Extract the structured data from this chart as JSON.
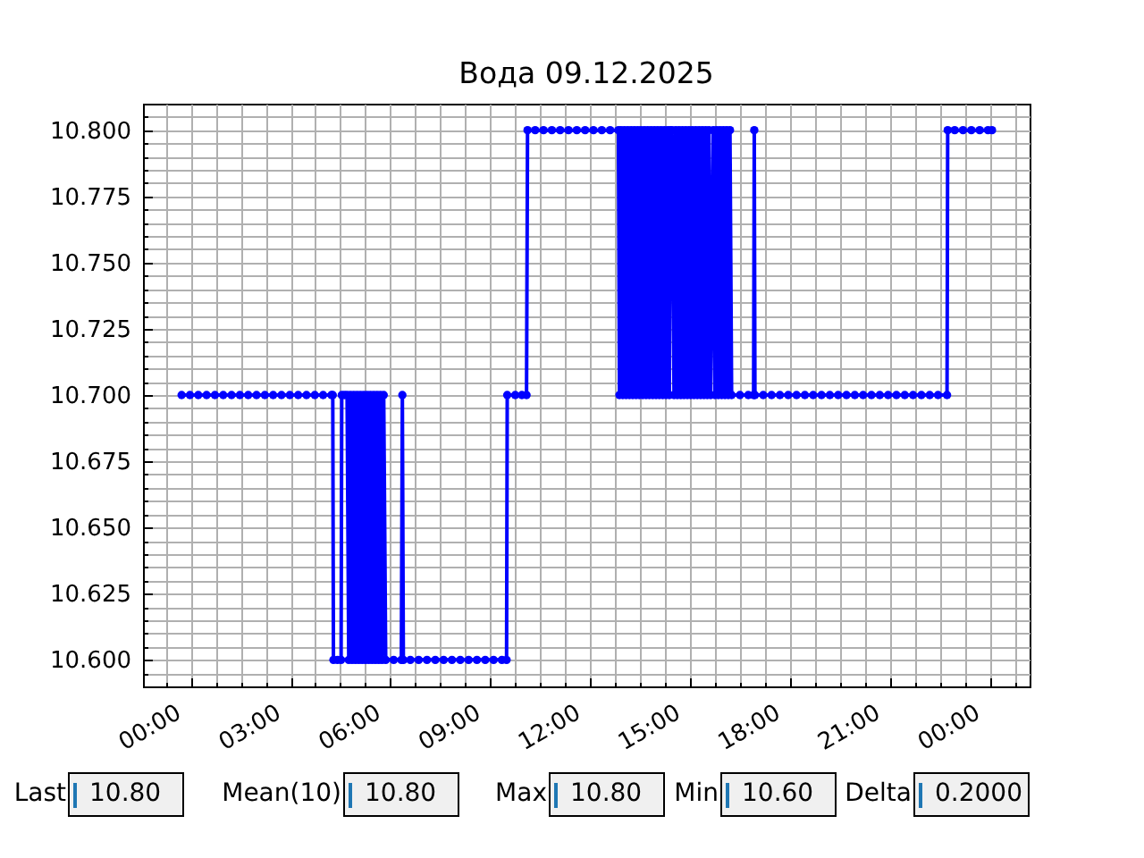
{
  "chart_data": {
    "type": "line",
    "title": "Вода 09.12.2025",
    "color": "#0000ff",
    "marker": "circle",
    "grid": true,
    "xlim": [
      -1.43,
      25.2
    ],
    "ylim": [
      10.59,
      10.81
    ],
    "xticks": [
      {
        "value": -0.75,
        "label": null
      },
      {
        "value": 0,
        "label": "00:00"
      },
      {
        "value": 0.75,
        "label": null
      },
      {
        "value": 1.5,
        "label": null
      },
      {
        "value": 2.25,
        "label": null
      },
      {
        "value": 3,
        "label": "03:00"
      },
      {
        "value": 3.75,
        "label": null
      },
      {
        "value": 4.5,
        "label": null
      },
      {
        "value": 5.25,
        "label": null
      },
      {
        "value": 6,
        "label": "06:00"
      },
      {
        "value": 6.75,
        "label": null
      },
      {
        "value": 7.5,
        "label": null
      },
      {
        "value": 8.25,
        "label": null
      },
      {
        "value": 9,
        "label": "09:00"
      },
      {
        "value": 9.75,
        "label": null
      },
      {
        "value": 10.5,
        "label": null
      },
      {
        "value": 11.25,
        "label": null
      },
      {
        "value": 12,
        "label": "12:00"
      },
      {
        "value": 12.75,
        "label": null
      },
      {
        "value": 13.5,
        "label": null
      },
      {
        "value": 14.25,
        "label": null
      },
      {
        "value": 15,
        "label": "15:00"
      },
      {
        "value": 15.75,
        "label": null
      },
      {
        "value": 16.5,
        "label": null
      },
      {
        "value": 17.25,
        "label": null
      },
      {
        "value": 18,
        "label": "18:00"
      },
      {
        "value": 18.75,
        "label": null
      },
      {
        "value": 19.5,
        "label": null
      },
      {
        "value": 20.25,
        "label": null
      },
      {
        "value": 21,
        "label": "21:00"
      },
      {
        "value": 21.75,
        "label": null
      },
      {
        "value": 22.5,
        "label": null
      },
      {
        "value": 23.25,
        "label": null
      },
      {
        "value": 24,
        "label": "00:00"
      },
      {
        "value": 24.75,
        "label": null
      }
    ],
    "yticks": [
      {
        "value": 10.595,
        "label": null
      },
      {
        "value": 10.6,
        "label": "10.600"
      },
      {
        "value": 10.605,
        "label": null
      },
      {
        "value": 10.61,
        "label": null
      },
      {
        "value": 10.615,
        "label": null
      },
      {
        "value": 10.62,
        "label": null
      },
      {
        "value": 10.625,
        "label": "10.625"
      },
      {
        "value": 10.63,
        "label": null
      },
      {
        "value": 10.635,
        "label": null
      },
      {
        "value": 10.64,
        "label": null
      },
      {
        "value": 10.645,
        "label": null
      },
      {
        "value": 10.65,
        "label": "10.650"
      },
      {
        "value": 10.655,
        "label": null
      },
      {
        "value": 10.66,
        "label": null
      },
      {
        "value": 10.665,
        "label": null
      },
      {
        "value": 10.67,
        "label": null
      },
      {
        "value": 10.675,
        "label": "10.675"
      },
      {
        "value": 10.68,
        "label": null
      },
      {
        "value": 10.685,
        "label": null
      },
      {
        "value": 10.69,
        "label": null
      },
      {
        "value": 10.695,
        "label": null
      },
      {
        "value": 10.7,
        "label": "10.700"
      },
      {
        "value": 10.705,
        "label": null
      },
      {
        "value": 10.71,
        "label": null
      },
      {
        "value": 10.715,
        "label": null
      },
      {
        "value": 10.72,
        "label": null
      },
      {
        "value": 10.725,
        "label": "10.725"
      },
      {
        "value": 10.73,
        "label": null
      },
      {
        "value": 10.735,
        "label": null
      },
      {
        "value": 10.74,
        "label": null
      },
      {
        "value": 10.745,
        "label": null
      },
      {
        "value": 10.75,
        "label": "10.750"
      },
      {
        "value": 10.755,
        "label": null
      },
      {
        "value": 10.76,
        "label": null
      },
      {
        "value": 10.765,
        "label": null
      },
      {
        "value": 10.77,
        "label": null
      },
      {
        "value": 10.775,
        "label": "10.775"
      },
      {
        "value": 10.78,
        "label": null
      },
      {
        "value": 10.785,
        "label": null
      },
      {
        "value": 10.79,
        "label": null
      },
      {
        "value": 10.795,
        "label": null
      },
      {
        "value": 10.8,
        "label": "10.800"
      },
      {
        "value": 10.805,
        "label": null
      }
    ],
    "x": [
      -0.27,
      -0.02,
      0.23,
      0.48,
      0.73,
      0.98,
      1.23,
      1.48,
      1.73,
      1.98,
      2.23,
      2.48,
      2.73,
      2.98,
      3.23,
      3.48,
      3.73,
      3.98,
      4.23,
      4.27,
      4.29,
      4.41,
      4.52,
      4.54,
      4.62,
      4.7,
      4.75,
      4.8,
      4.85,
      4.9,
      4.95,
      5.0,
      5.05,
      5.1,
      5.15,
      5.2,
      5.25,
      5.3,
      5.35,
      5.4,
      5.45,
      5.5,
      5.55,
      5.6,
      5.65,
      5.7,
      5.75,
      5.8,
      5.86,
      6.1,
      6.33,
      6.36,
      6.39,
      6.6,
      6.85,
      7.1,
      7.35,
      7.6,
      7.85,
      8.1,
      8.35,
      8.6,
      8.85,
      9.1,
      9.35,
      9.49,
      9.51,
      9.75,
      9.95,
      10.09,
      10.12,
      10.35,
      10.6,
      10.85,
      11.1,
      11.35,
      11.6,
      11.85,
      12.1,
      12.35,
      12.6,
      12.85,
      12.88,
      12.93,
      12.98,
      13.03,
      13.08,
      13.13,
      13.18,
      13.23,
      13.28,
      13.33,
      13.38,
      13.43,
      13.48,
      13.53,
      13.58,
      13.63,
      13.68,
      13.73,
      13.78,
      13.83,
      13.88,
      13.93,
      13.98,
      14.03,
      14.08,
      14.13,
      14.18,
      14.23,
      14.28,
      14.33,
      14.38,
      14.41,
      14.46,
      14.52,
      14.57,
      14.62,
      14.67,
      14.72,
      14.77,
      14.82,
      14.87,
      14.92,
      14.97,
      15.02,
      15.07,
      15.12,
      15.17,
      15.22,
      15.27,
      15.32,
      15.37,
      15.42,
      15.47,
      15.52,
      15.57,
      15.62,
      15.7,
      15.75,
      15.8,
      15.85,
      15.9,
      15.95,
      16.0,
      16.05,
      16.1,
      16.15,
      16.2,
      16.25,
      16.5,
      16.75,
      16.91,
      16.93,
      16.95,
      17.2,
      17.45,
      17.7,
      17.95,
      18.2,
      18.45,
      18.7,
      18.95,
      19.2,
      19.45,
      19.7,
      19.95,
      20.2,
      20.45,
      20.7,
      20.95,
      21.2,
      21.45,
      21.7,
      21.95,
      22.2,
      22.45,
      22.72,
      22.74,
      22.95,
      23.2,
      23.45,
      23.7,
      23.95,
      24.07
    ],
    "values": [
      10.7,
      10.7,
      10.7,
      10.7,
      10.7,
      10.7,
      10.7,
      10.7,
      10.7,
      10.7,
      10.7,
      10.7,
      10.7,
      10.7,
      10.7,
      10.7,
      10.7,
      10.7,
      10.7,
      10.7,
      10.6,
      10.6,
      10.6,
      10.7,
      10.7,
      10.7,
      10.6,
      10.7,
      10.6,
      10.7,
      10.6,
      10.7,
      10.6,
      10.7,
      10.6,
      10.7,
      10.6,
      10.7,
      10.6,
      10.7,
      10.6,
      10.7,
      10.6,
      10.7,
      10.6,
      10.7,
      10.6,
      10.7,
      10.6,
      10.6,
      10.6,
      10.7,
      10.6,
      10.6,
      10.6,
      10.6,
      10.6,
      10.6,
      10.6,
      10.6,
      10.6,
      10.6,
      10.6,
      10.6,
      10.6,
      10.6,
      10.7,
      10.7,
      10.7,
      10.7,
      10.8,
      10.8,
      10.8,
      10.8,
      10.8,
      10.8,
      10.8,
      10.8,
      10.8,
      10.8,
      10.8,
      10.8,
      10.7,
      10.8,
      10.7,
      10.8,
      10.7,
      10.8,
      10.7,
      10.8,
      10.7,
      10.8,
      10.7,
      10.8,
      10.7,
      10.8,
      10.7,
      10.8,
      10.7,
      10.8,
      10.7,
      10.8,
      10.7,
      10.8,
      10.7,
      10.8,
      10.7,
      10.8,
      10.7,
      10.8,
      10.7,
      10.8,
      10.7,
      10.8,
      10.8,
      10.7,
      10.8,
      10.7,
      10.8,
      10.7,
      10.8,
      10.7,
      10.8,
      10.7,
      10.8,
      10.7,
      10.8,
      10.7,
      10.8,
      10.7,
      10.8,
      10.7,
      10.8,
      10.7,
      10.8,
      10.7,
      10.8,
      10.7,
      10.8,
      10.7,
      10.8,
      10.7,
      10.8,
      10.7,
      10.8,
      10.7,
      10.8,
      10.7,
      10.8,
      10.7,
      10.7,
      10.7,
      10.7,
      10.8,
      10.7,
      10.7,
      10.7,
      10.7,
      10.7,
      10.7,
      10.7,
      10.7,
      10.7,
      10.7,
      10.7,
      10.7,
      10.7,
      10.7,
      10.7,
      10.7,
      10.7,
      10.7,
      10.7,
      10.7,
      10.7,
      10.7,
      10.7,
      10.7,
      10.8,
      10.8,
      10.8,
      10.8,
      10.8,
      10.8,
      10.8
    ],
    "annotations": [
      "Last",
      "10.80",
      "Mean(10)",
      "10.80",
      "Max",
      "10.80",
      "Min",
      "10.60",
      "Delta",
      "0.2000"
    ]
  }
}
